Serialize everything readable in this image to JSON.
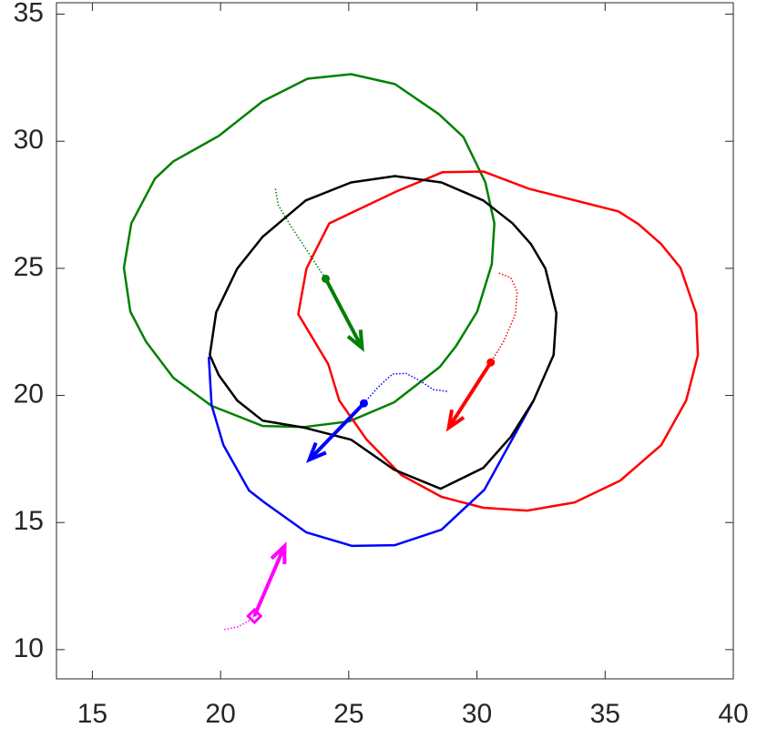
{
  "chart_data": {
    "type": "line",
    "xlim": [
      13.6,
      40
    ],
    "ylim": [
      8.85,
      35.45
    ],
    "xticks": [
      15,
      20,
      25,
      30,
      35,
      40
    ],
    "yticks": [
      10,
      15,
      20,
      25,
      30,
      35
    ],
    "grid": false,
    "box": true,
    "series": [
      {
        "color": "#008000",
        "style": "solid",
        "width": 2.5,
        "closed": true,
        "x": [
          16.23,
          16.52,
          17.44,
          18.16,
          19.93,
          21.64,
          23.39,
          25.09,
          26.8,
          28.51,
          29.47,
          30.33,
          30.68,
          30.58,
          30.01,
          29.19,
          28.55,
          26.77,
          25.02,
          23.28,
          21.64,
          19.65,
          18.16,
          17.09,
          16.48
        ],
        "values": [
          25.02,
          26.77,
          28.53,
          29.21,
          30.21,
          31.57,
          32.46,
          32.64,
          32.25,
          31.07,
          30.17,
          28.38,
          26.77,
          25.16,
          23.3,
          21.95,
          21.12,
          19.73,
          18.98,
          18.76,
          18.8,
          19.59,
          20.69,
          22.12,
          23.3
        ]
      },
      {
        "color": "#ff0000",
        "style": "solid",
        "width": 2.5,
        "closed": true,
        "x": [
          23.03,
          23.35,
          24.24,
          26.87,
          28.65,
          30.25,
          32.03,
          35.52,
          36.3,
          37.19,
          37.94,
          38.55,
          38.62,
          38.16,
          37.19,
          35.59,
          33.81,
          31.96,
          30.25,
          28.62,
          27.05,
          25.7,
          24.63,
          24.2
        ],
        "values": [
          23.2,
          24.99,
          26.77,
          28.03,
          28.78,
          28.81,
          28.13,
          27.24,
          26.74,
          25.95,
          25.02,
          23.23,
          21.59,
          19.8,
          18.05,
          16.65,
          15.79,
          15.47,
          15.58,
          16.01,
          16.87,
          18.26,
          19.8,
          21.23
        ]
      },
      {
        "color": "#0000ff",
        "style": "solid",
        "width": 2.5,
        "closed": false,
        "x": [
          19.54,
          19.65,
          20.11,
          21.11,
          21.71,
          23.35,
          25.13,
          26.8,
          28.62,
          30.29,
          32.21
        ],
        "values": [
          21.52,
          19.62,
          18.05,
          16.26,
          15.79,
          14.61,
          14.08,
          14.11,
          14.72,
          16.29,
          19.8
        ]
      },
      {
        "color": "#000000",
        "style": "solid",
        "width": 2.5,
        "closed": true,
        "x": [
          19.58,
          19.83,
          20.65,
          21.64,
          23.32,
          25.09,
          26.8,
          28.62,
          30.25,
          31.39,
          32.11,
          32.67,
          33.1,
          32.99,
          32.21,
          31.32,
          30.25,
          28.58,
          26.77,
          25.09,
          23.28,
          21.64,
          20.65,
          19.93
        ],
        "values": [
          21.59,
          23.27,
          24.99,
          26.24,
          27.67,
          28.38,
          28.63,
          28.38,
          27.67,
          26.77,
          25.95,
          24.99,
          23.23,
          21.59,
          19.8,
          18.37,
          17.15,
          16.33,
          17.08,
          18.26,
          18.73,
          19.01,
          19.8,
          20.8
        ]
      },
      {
        "color": "#008000",
        "style": "dotted",
        "width": 1.5,
        "closed": false,
        "x": [
          22.14,
          22.25,
          22.78,
          23.49,
          24.1
        ],
        "values": [
          28.13,
          27.49,
          26.6,
          25.52,
          24.59
        ]
      },
      {
        "color": "#ff0000",
        "style": "dotted",
        "width": 1.5,
        "closed": false,
        "x": [
          30.86,
          31.32,
          31.57,
          31.5,
          31.04,
          30.54
        ],
        "values": [
          24.81,
          24.63,
          24.09,
          23.2,
          22.12,
          21.3
        ]
      },
      {
        "color": "#0000ff",
        "style": "dotted",
        "width": 1.5,
        "closed": false,
        "x": [
          28.83,
          28.3,
          27.76,
          27.23,
          26.7,
          26.16,
          25.59
        ],
        "values": [
          20.16,
          20.23,
          20.59,
          20.87,
          20.84,
          20.34,
          19.69
        ]
      },
      {
        "color": "#ff00ff",
        "style": "dotted",
        "width": 1.5,
        "closed": false,
        "x": [
          20.15,
          20.65,
          21.07,
          21.32
        ],
        "values": [
          10.79,
          10.89,
          11.11,
          11.32
        ]
      }
    ],
    "arrows": [
      {
        "color": "#008000",
        "marker": "circle",
        "x": [
          24.1,
          25.52
        ],
        "y": [
          24.59,
          21.87
        ]
      },
      {
        "color": "#ff0000",
        "marker": "circle",
        "x": [
          30.54,
          28.9
        ],
        "y": [
          21.3,
          18.73
        ]
      },
      {
        "color": "#0000ff",
        "marker": "circle",
        "x": [
          25.59,
          23.46
        ],
        "y": [
          19.69,
          17.47
        ]
      },
      {
        "color": "#ff00ff",
        "marker": "diamond",
        "x": [
          21.32,
          22.5
        ],
        "y": [
          11.32,
          14.08
        ]
      }
    ]
  }
}
